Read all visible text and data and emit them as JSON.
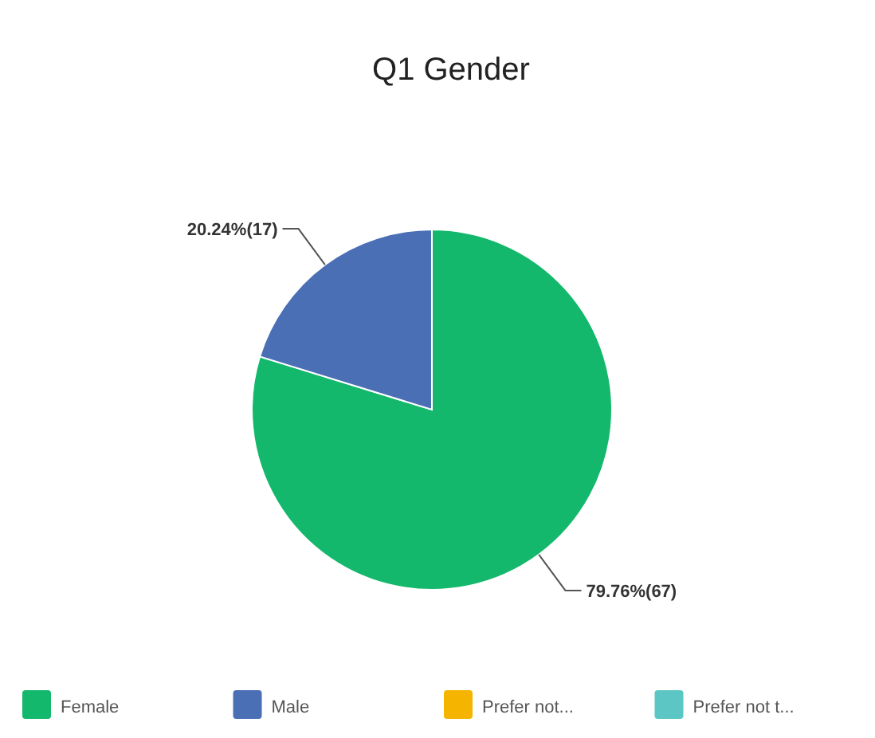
{
  "chart_data": {
    "type": "pie",
    "title": "Q1 Gender",
    "categories": [
      "Female",
      "Male",
      "Prefer not...",
      "Prefer not t..."
    ],
    "values": [
      67,
      17,
      0,
      0
    ],
    "colors": [
      "#14b86c",
      "#4a6fb5",
      "#f4b400",
      "#5cc6c4"
    ],
    "value_labels": [
      "79.76%(67)",
      "20.24%(17)",
      null,
      null
    ],
    "legend": "bottom"
  }
}
